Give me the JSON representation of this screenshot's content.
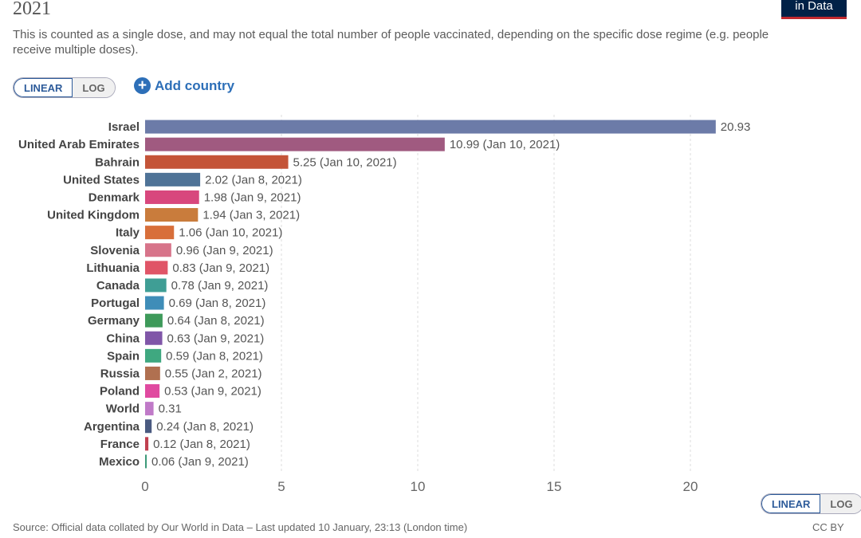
{
  "header": {
    "title_tail": "2021",
    "logo_text": "in Data",
    "subtitle": "This is counted as a single dose, and may not equal the total number of people vaccinated, depending on the specific dose regime (e.g. people receive multiple doses)."
  },
  "controls": {
    "linear_label": "LINEAR",
    "log_label": "LOG",
    "add_country_label": "Add country"
  },
  "footer": {
    "source": "Source: Official data collated by Our World in Data – Last updated 10 January, 23:13 (London time)",
    "license": "CC BY"
  },
  "chart_data": {
    "type": "bar",
    "orientation": "horizontal",
    "xlim": [
      0,
      22
    ],
    "x_ticks": [
      0,
      5,
      10,
      15,
      20
    ],
    "grid": true,
    "bars": [
      {
        "country": "Israel",
        "value": 20.93,
        "label": "20.93",
        "color": "#6c7ba8"
      },
      {
        "country": "United Arab Emirates",
        "value": 10.99,
        "label": "10.99 (Jan 10, 2021)",
        "color": "#a05a80"
      },
      {
        "country": "Bahrain",
        "value": 5.25,
        "label": "5.25 (Jan 10, 2021)",
        "color": "#c45438"
      },
      {
        "country": "United States",
        "value": 2.02,
        "label": "2.02 (Jan 8, 2021)",
        "color": "#4f7397"
      },
      {
        "country": "Denmark",
        "value": 1.98,
        "label": "1.98 (Jan 9, 2021)",
        "color": "#d8477d"
      },
      {
        "country": "United Kingdom",
        "value": 1.94,
        "label": "1.94 (Jan 3, 2021)",
        "color": "#c97c3c"
      },
      {
        "country": "Italy",
        "value": 1.06,
        "label": "1.06 (Jan 10, 2021)",
        "color": "#d86f3a"
      },
      {
        "country": "Slovenia",
        "value": 0.96,
        "label": "0.96 (Jan 9, 2021)",
        "color": "#d7748a"
      },
      {
        "country": "Lithuania",
        "value": 0.83,
        "label": "0.83 (Jan 9, 2021)",
        "color": "#e05567"
      },
      {
        "country": "Canada",
        "value": 0.78,
        "label": "0.78 (Jan 9, 2021)",
        "color": "#3f9e95"
      },
      {
        "country": "Portugal",
        "value": 0.69,
        "label": "0.69 (Jan 8, 2021)",
        "color": "#3f8db8"
      },
      {
        "country": "Germany",
        "value": 0.64,
        "label": "0.64 (Jan 8, 2021)",
        "color": "#3e9a5a"
      },
      {
        "country": "China",
        "value": 0.63,
        "label": "0.63 (Jan 9, 2021)",
        "color": "#8056a8"
      },
      {
        "country": "Spain",
        "value": 0.59,
        "label": "0.59 (Jan 8, 2021)",
        "color": "#3fa880"
      },
      {
        "country": "Russia",
        "value": 0.55,
        "label": "0.55 (Jan 2, 2021)",
        "color": "#b07050"
      },
      {
        "country": "Poland",
        "value": 0.53,
        "label": "0.53 (Jan 9, 2021)",
        "color": "#e04aa0"
      },
      {
        "country": "World",
        "value": 0.31,
        "label": "0.31",
        "color": "#c07ac8"
      },
      {
        "country": "Argentina",
        "value": 0.24,
        "label": "0.24 (Jan 8, 2021)",
        "color": "#4a5a80"
      },
      {
        "country": "France",
        "value": 0.12,
        "label": "0.12 (Jan 8, 2021)",
        "color": "#c04050"
      },
      {
        "country": "Mexico",
        "value": 0.06,
        "label": "0.06 (Jan 9, 2021)",
        "color": "#3e9a7a"
      }
    ]
  }
}
